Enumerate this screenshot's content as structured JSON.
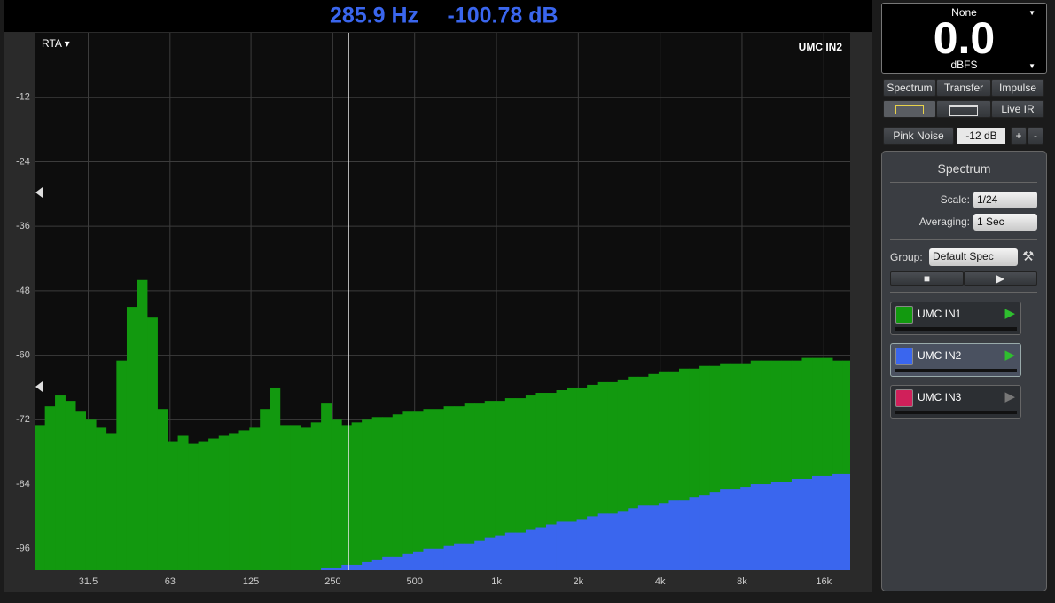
{
  "readout": {
    "frequency": "285.9 Hz",
    "level": "-100.78 dB"
  },
  "chart_data": {
    "type": "bar",
    "menu": "RTA ▾",
    "cursor_x": 285.9,
    "log_x": true,
    "grid": true,
    "x": [
      20.9,
      22.8,
      24.8,
      27.1,
      29.5,
      32.2,
      35.1,
      38.3,
      41.8,
      45.6,
      49.7,
      54.2,
      59.1,
      64.4,
      70.3,
      76.6,
      83.5,
      91.1,
      99.4,
      108,
      118,
      129,
      141,
      153,
      167,
      182,
      199,
      217,
      236,
      258,
      281,
      306,
      334,
      364,
      397,
      433,
      473,
      515,
      562,
      613,
      668,
      729,
      795,
      867,
      945,
      1031,
      1124,
      1226,
      1337,
      1458,
      1590,
      1734,
      1890,
      2061,
      2248,
      2451,
      2673,
      2915,
      3179,
      3467,
      3781,
      4123,
      4496,
      4903,
      5347,
      5831,
      6359,
      6934,
      7561,
      8246,
      8992,
      9806,
      10694,
      11662,
      12717,
      13868,
      15123,
      16492,
      17985,
      19612
    ],
    "series": [
      {
        "name": "UMC IN1",
        "color": "#12990f",
        "values": [
          -73,
          -69.5,
          -67.5,
          -68.5,
          -70.5,
          -72,
          -73.5,
          -74.5,
          -61,
          -51,
          -46,
          -53,
          -70,
          -76,
          -75,
          -76.5,
          -76,
          -75.5,
          -75,
          -74.5,
          -74,
          -73.5,
          -70,
          -66,
          -73,
          -73,
          -73.5,
          -72.5,
          -69,
          -72,
          -73,
          -72.5,
          -72,
          -71.5,
          -71.5,
          -71,
          -70.5,
          -70.5,
          -70,
          -70,
          -69.5,
          -69.5,
          -69,
          -69,
          -68.5,
          -68.5,
          -68,
          -68,
          -67.5,
          -67,
          -67,
          -66.5,
          -66,
          -66,
          -65.5,
          -65,
          -65,
          -64.5,
          -64,
          -64,
          -63.5,
          -63,
          -63,
          -62.5,
          -62.5,
          -62,
          -62,
          -61.5,
          -61.5,
          -61.5,
          -61,
          -61,
          -61,
          -61,
          -61,
          -60.5,
          -60.5,
          -60.5,
          -61,
          -61
        ]
      },
      {
        "name": "UMC IN2",
        "color": "#3a66ee",
        "values": [
          null,
          null,
          null,
          null,
          null,
          null,
          null,
          null,
          null,
          null,
          null,
          null,
          null,
          null,
          null,
          null,
          null,
          null,
          null,
          null,
          null,
          null,
          null,
          null,
          null,
          null,
          null,
          null,
          -99.5,
          -99.5,
          -99,
          -99,
          -98.5,
          -98,
          -97.5,
          -97.5,
          -97,
          -96.5,
          -96,
          -96,
          -95.5,
          -95,
          -95,
          -94.5,
          -94,
          -93.5,
          -93,
          -93,
          -92.5,
          -92,
          -91.5,
          -91,
          -91,
          -90.5,
          -90,
          -89.5,
          -89.5,
          -89,
          -88.5,
          -88,
          -88,
          -87.5,
          -87,
          -87,
          -86.5,
          -86,
          -85.5,
          -85,
          -85,
          -84.5,
          -84,
          -84,
          -83.5,
          -83.5,
          -83,
          -83,
          -82.5,
          -82.5,
          -82,
          -82
        ]
      }
    ],
    "xlim": [
      20,
      20000
    ],
    "ylim": [
      -100,
      0
    ],
    "xticks": [
      31.5,
      63,
      125,
      250,
      500,
      {
        "value": 1000,
        "label": "1k"
      },
      {
        "value": 2000,
        "label": "2k"
      },
      {
        "value": 4000,
        "label": "4k"
      },
      {
        "value": 8000,
        "label": "8k"
      },
      {
        "value": 16000,
        "label": "16k"
      }
    ],
    "yticks": [
      -12,
      -24,
      -36,
      -48,
      -60,
      -72,
      -84,
      -96
    ]
  },
  "meter": {
    "source": "None",
    "value": "0.0",
    "unit": "dBFS"
  },
  "toolbar": {
    "tabs": [
      "Spectrum",
      "Transfer",
      "Impulse"
    ],
    "live_ir": "Live IR",
    "generator": "Pink Noise",
    "gain": "-12 dB",
    "plus": "+",
    "minus": "-"
  },
  "panel": {
    "title": "Spectrum",
    "scale_label": "Scale:",
    "scale": "1/24",
    "averaging_label": "Averaging:",
    "averaging": "1 Sec",
    "group_label": "Group:",
    "group": "Default Spec",
    "extra_channel": {
      "name": "UMC IN3",
      "color": "#d0205a"
    }
  }
}
